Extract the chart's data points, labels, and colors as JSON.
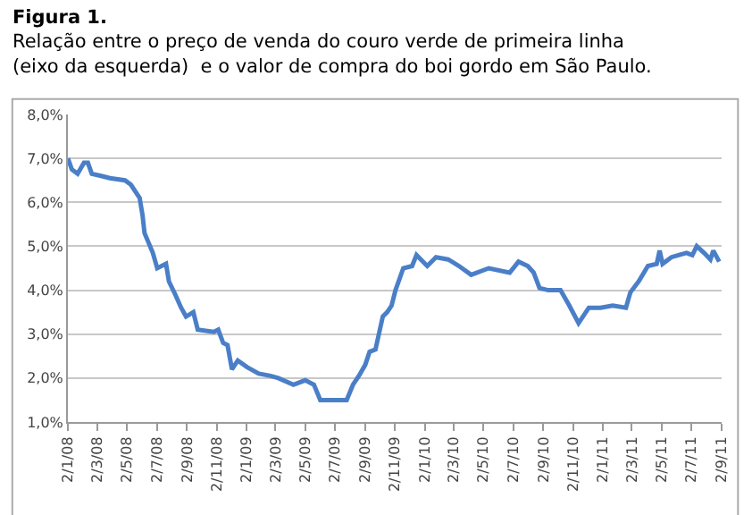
{
  "chart_data": {
    "type": "line",
    "title": "Figura 1.",
    "subtitle": "Relação entre o preço de venda do couro verde de primeira linha\n(eixo da esquerda)  e o valor de compra do boi gordo em São Paulo.",
    "x": [
      "2008-01-02",
      "2008-01-10",
      "2008-01-22",
      "2008-02-04",
      "2008-02-12",
      "2008-02-20",
      "2008-03-10",
      "2008-03-28",
      "2008-04-28",
      "2008-05-10",
      "2008-05-28",
      "2008-06-03",
      "2008-06-07",
      "2008-06-24",
      "2008-07-03",
      "2008-07-21",
      "2008-07-27",
      "2008-08-09",
      "2008-08-21",
      "2008-08-31",
      "2008-09-15",
      "2008-09-24",
      "2008-10-27",
      "2008-11-05",
      "2008-11-15",
      "2008-11-24",
      "2008-12-03",
      "2008-12-15",
      "2009-01-03",
      "2009-01-27",
      "2009-02-20",
      "2009-03-08",
      "2009-04-08",
      "2009-05-02",
      "2009-05-20",
      "2009-06-02",
      "2009-07-26",
      "2009-08-08",
      "2009-08-20",
      "2009-09-02",
      "2009-09-11",
      "2009-09-23",
      "2009-10-02",
      "2009-10-08",
      "2009-10-17",
      "2009-10-26",
      "2009-11-03",
      "2009-11-19",
      "2009-12-07",
      "2009-12-16",
      "2010-01-07",
      "2010-01-25",
      "2010-02-19",
      "2010-03-13",
      "2010-04-07",
      "2010-05-13",
      "2010-06-25",
      "2010-07-13",
      "2010-08-01",
      "2010-08-13",
      "2010-08-25",
      "2010-09-12",
      "2010-10-07",
      "2010-10-25",
      "2010-11-13",
      "2010-12-04",
      "2010-12-28",
      "2011-01-22",
      "2011-02-18",
      "2011-02-27",
      "2011-03-16",
      "2011-04-04",
      "2011-04-22",
      "2011-04-28",
      "2011-05-04",
      "2011-05-22",
      "2011-06-22",
      "2011-07-04",
      "2011-07-13",
      "2011-07-28",
      "2011-08-10",
      "2011-08-16",
      "2011-08-28"
    ],
    "series": [
      {
        "color": "#4a7fc8",
        "values": [
          7.0,
          6.75,
          6.65,
          6.9,
          6.9,
          6.65,
          6.6,
          6.55,
          6.5,
          6.4,
          6.1,
          5.7,
          5.3,
          4.85,
          4.5,
          4.6,
          4.2,
          3.9,
          3.6,
          3.4,
          3.5,
          3.1,
          3.05,
          3.1,
          2.8,
          2.75,
          2.2,
          2.4,
          2.25,
          2.1,
          2.05,
          2.0,
          1.85,
          1.95,
          1.85,
          1.5,
          1.5,
          1.85,
          2.05,
          2.3,
          2.6,
          2.65,
          3.1,
          3.4,
          3.5,
          3.65,
          4.0,
          4.5,
          4.55,
          4.8,
          4.55,
          4.75,
          4.7,
          4.55,
          4.35,
          4.5,
          4.4,
          4.65,
          4.55,
          4.4,
          4.05,
          4.0,
          4.0,
          3.65,
          3.25,
          3.6,
          3.6,
          3.65,
          3.6,
          3.95,
          4.2,
          4.55,
          4.6,
          4.9,
          4.6,
          4.75,
          4.85,
          4.8,
          5.0,
          4.85,
          4.7,
          4.9,
          4.65
        ]
      }
    ],
    "xlim": [
      "2008-01-02",
      "2011-09-02"
    ],
    "xticks": [
      {
        "value": "2008-01-02",
        "label": "2/1/08"
      },
      {
        "value": "2008-03-02",
        "label": "2/3/08"
      },
      {
        "value": "2008-05-02",
        "label": "2/5/08"
      },
      {
        "value": "2008-07-02",
        "label": "2/7/08"
      },
      {
        "value": "2008-09-02",
        "label": "2/9/08"
      },
      {
        "value": "2008-11-02",
        "label": "2/11/08"
      },
      {
        "value": "2009-01-02",
        "label": "2/1/09"
      },
      {
        "value": "2009-03-02",
        "label": "2/3/09"
      },
      {
        "value": "2009-05-02",
        "label": "2/5/09"
      },
      {
        "value": "2009-07-02",
        "label": "2/7/09"
      },
      {
        "value": "2009-09-02",
        "label": "2/9/09"
      },
      {
        "value": "2009-11-02",
        "label": "2/11/09"
      },
      {
        "value": "2010-01-02",
        "label": "2/1/10"
      },
      {
        "value": "2010-03-02",
        "label": "2/3/10"
      },
      {
        "value": "2010-05-02",
        "label": "2/5/10"
      },
      {
        "value": "2010-07-02",
        "label": "2/7/10"
      },
      {
        "value": "2010-09-02",
        "label": "2/9/10"
      },
      {
        "value": "2010-11-02",
        "label": "2/11/10"
      },
      {
        "value": "2011-01-02",
        "label": "2/1/11"
      },
      {
        "value": "2011-03-02",
        "label": "2/3/11"
      },
      {
        "value": "2011-05-02",
        "label": "2/5/11"
      },
      {
        "value": "2011-07-02",
        "label": "2/7/11"
      },
      {
        "value": "2011-09-02",
        "label": "2/9/11"
      }
    ],
    "ylim": [
      1,
      8
    ],
    "yticks": [
      {
        "value": 1,
        "label": "1,0%"
      },
      {
        "value": 2,
        "label": "2,0%"
      },
      {
        "value": 3,
        "label": "3,0%"
      },
      {
        "value": 4,
        "label": "4,0%"
      },
      {
        "value": 5,
        "label": "5,0%"
      },
      {
        "value": 6,
        "label": "6,0%"
      },
      {
        "value": 7,
        "label": "7,0%"
      },
      {
        "value": 8,
        "label": "8,0%"
      }
    ],
    "grid": "y",
    "marker": "none",
    "line_style": "solid"
  }
}
